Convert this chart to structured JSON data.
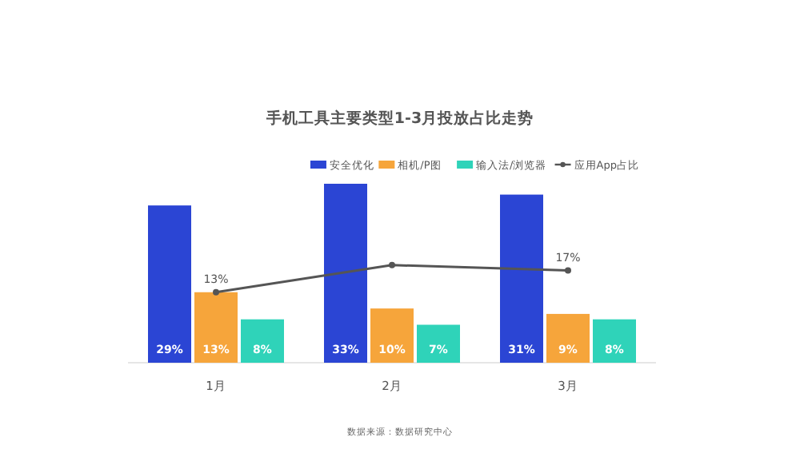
{
  "chart_data": {
    "type": "bar",
    "title": "手机工具主要类型1-3月投放占比走势",
    "categories": [
      "1月",
      "2月",
      "3月"
    ],
    "series": [
      {
        "name": "安全优化",
        "color": "#2b45d4",
        "values": [
          29,
          33,
          31
        ],
        "value_labels": [
          "29%",
          "33%",
          "31%"
        ]
      },
      {
        "name": "相机/P图",
        "color": "#f6a53b",
        "values": [
          13,
          10,
          9
        ],
        "value_labels": [
          "13%",
          "10%",
          "9%"
        ]
      },
      {
        "name": "输入法/浏览器",
        "color": "#2fd3b9",
        "values": [
          8,
          7,
          8
        ],
        "value_labels": [
          "8%",
          "7%",
          "8%"
        ]
      },
      {
        "name": "应用App占比",
        "type": "line",
        "color": "#555555",
        "values": [
          13,
          18,
          17
        ],
        "value_labels": [
          "13%",
          null,
          "17%"
        ],
        "marker": "circle"
      }
    ],
    "legend": "top right",
    "annotations": [
      "数据来源：数据研究中心"
    ]
  }
}
